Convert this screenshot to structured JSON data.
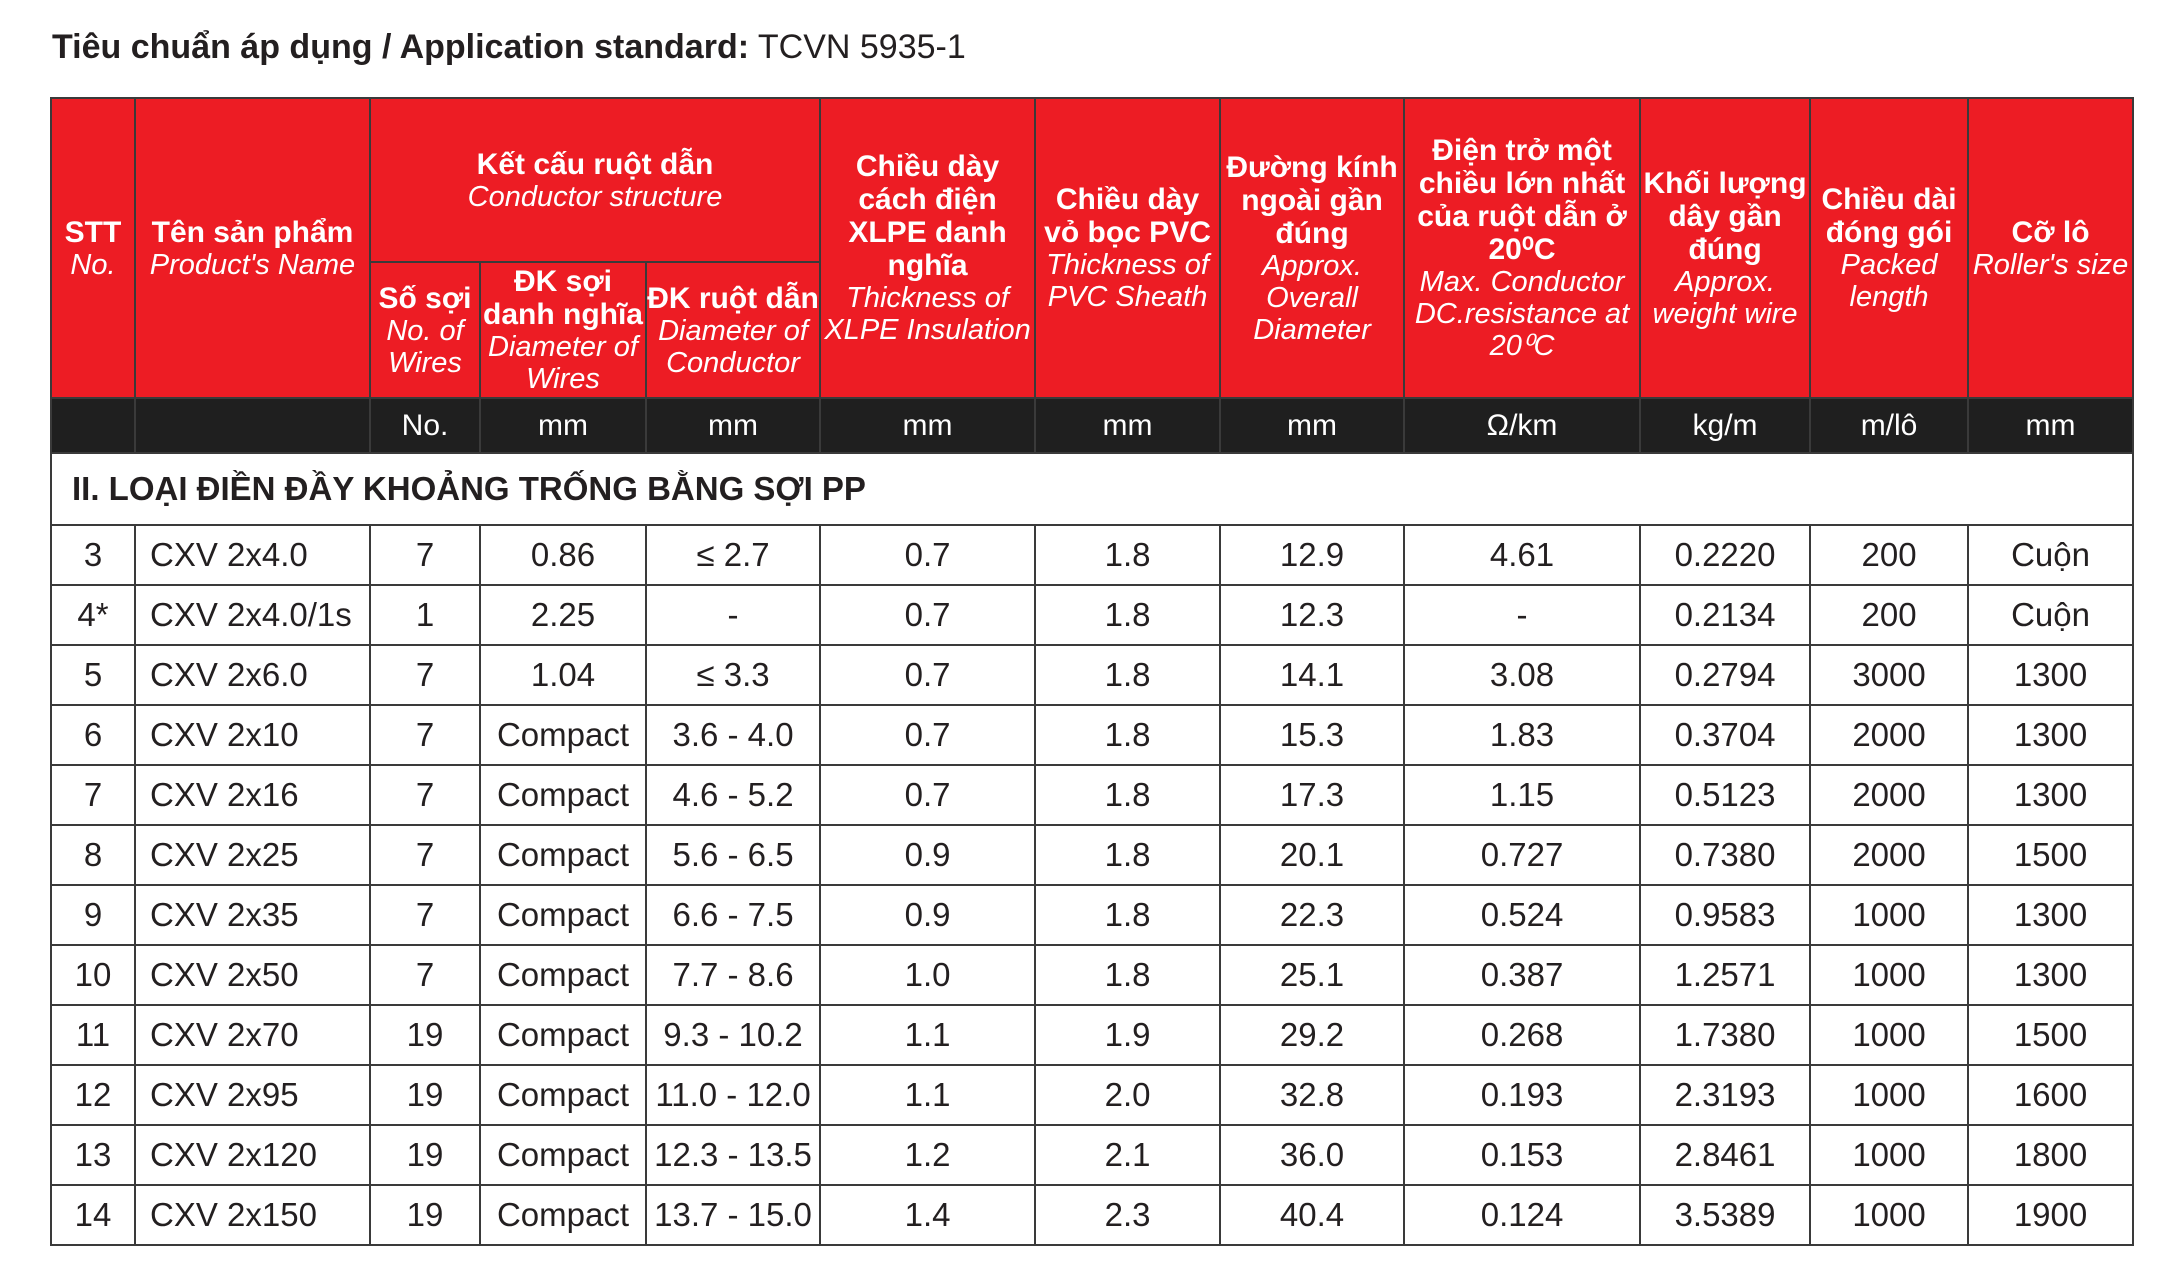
{
  "standard": {
    "label": "Tiêu chuẩn áp dụng / Application standard:",
    "value": " TCVN 5935-1"
  },
  "headers": {
    "stt": {
      "vn": "STT",
      "en": "No."
    },
    "name": {
      "vn": "Tên sản phẩm",
      "en": "Product's Name"
    },
    "conductor": {
      "vn": "Kết cấu ruột dẫn",
      "en": "Conductor structure"
    },
    "wires": {
      "vn": "Số sợi",
      "en": "No. of Wires"
    },
    "wire_dia": {
      "vn": "ĐK sợi danh nghĩa",
      "en": "Diameter of Wires"
    },
    "cond_dia": {
      "vn": "ĐK ruột dẫn",
      "en": "Diameter of Conductor"
    },
    "insulation": {
      "vn": "Chiều dày cách điện XLPE danh nghĩa",
      "en": "Thickness of XLPE Insulation"
    },
    "sheath": {
      "vn": "Chiều dày vỏ bọc PVC",
      "en": "Thickness of PVC Sheath"
    },
    "overall": {
      "vn": "Đường kính ngoài gần đúng",
      "en": "Approx. Overall Diameter"
    },
    "resistance": {
      "vn": "Điện trở một chiều lớn nhất của ruột dẫn ở 20⁰C",
      "en": "Max. Conductor DC.resistance at 20⁰C"
    },
    "weight": {
      "vn": "Khối lượng dây gần đúng",
      "en": "Approx. weight wire"
    },
    "length": {
      "vn": "Chiều dài đóng gói",
      "en": "Packed length"
    },
    "roller": {
      "vn": "Cỡ lô",
      "en": "Roller's size"
    }
  },
  "units": [
    "",
    "",
    "No.",
    "mm",
    "mm",
    "mm",
    "mm",
    "mm",
    "Ω/km",
    "kg/m",
    "m/lô",
    "mm"
  ],
  "section_title": "II. LOẠI ĐIỀN ĐẦY KHOẢNG TRỐNG BẰNG SỢI PP",
  "rows": [
    [
      "3",
      "CXV 2x4.0",
      "7",
      "0.86",
      "≤ 2.7",
      "0.7",
      "1.8",
      "12.9",
      "4.61",
      "0.2220",
      "200",
      "Cuộn"
    ],
    [
      "4*",
      "CXV 2x4.0/1s",
      "1",
      "2.25",
      "-",
      "0.7",
      "1.8",
      "12.3",
      "-",
      "0.2134",
      "200",
      "Cuộn"
    ],
    [
      "5",
      "CXV 2x6.0",
      "7",
      "1.04",
      "≤ 3.3",
      "0.7",
      "1.8",
      "14.1",
      "3.08",
      "0.2794",
      "3000",
      "1300"
    ],
    [
      "6",
      "CXV 2x10",
      "7",
      "Compact",
      "3.6 - 4.0",
      "0.7",
      "1.8",
      "15.3",
      "1.83",
      "0.3704",
      "2000",
      "1300"
    ],
    [
      "7",
      "CXV 2x16",
      "7",
      "Compact",
      "4.6 - 5.2",
      "0.7",
      "1.8",
      "17.3",
      "1.15",
      "0.5123",
      "2000",
      "1300"
    ],
    [
      "8",
      "CXV 2x25",
      "7",
      "Compact",
      "5.6 - 6.5",
      "0.9",
      "1.8",
      "20.1",
      "0.727",
      "0.7380",
      "2000",
      "1500"
    ],
    [
      "9",
      "CXV 2x35",
      "7",
      "Compact",
      "6.6 - 7.5",
      "0.9",
      "1.8",
      "22.3",
      "0.524",
      "0.9583",
      "1000",
      "1300"
    ],
    [
      "10",
      "CXV 2x50",
      "7",
      "Compact",
      "7.7 - 8.6",
      "1.0",
      "1.8",
      "25.1",
      "0.387",
      "1.2571",
      "1000",
      "1300"
    ],
    [
      "11",
      "CXV 2x70",
      "19",
      "Compact",
      "9.3 - 10.2",
      "1.1",
      "1.9",
      "29.2",
      "0.268",
      "1.7380",
      "1000",
      "1500"
    ],
    [
      "12",
      "CXV 2x95",
      "19",
      "Compact",
      "11.0 - 12.0",
      "1.1",
      "2.0",
      "32.8",
      "0.193",
      "2.3193",
      "1000",
      "1600"
    ],
    [
      "13",
      "CXV 2x120",
      "19",
      "Compact",
      "12.3 - 13.5",
      "1.2",
      "2.1",
      "36.0",
      "0.153",
      "2.8461",
      "1000",
      "1800"
    ],
    [
      "14",
      "CXV 2x150",
      "19",
      "Compact",
      "13.7 - 15.0",
      "1.4",
      "2.3",
      "40.4",
      "0.124",
      "3.5389",
      "1000",
      "1900"
    ]
  ]
}
